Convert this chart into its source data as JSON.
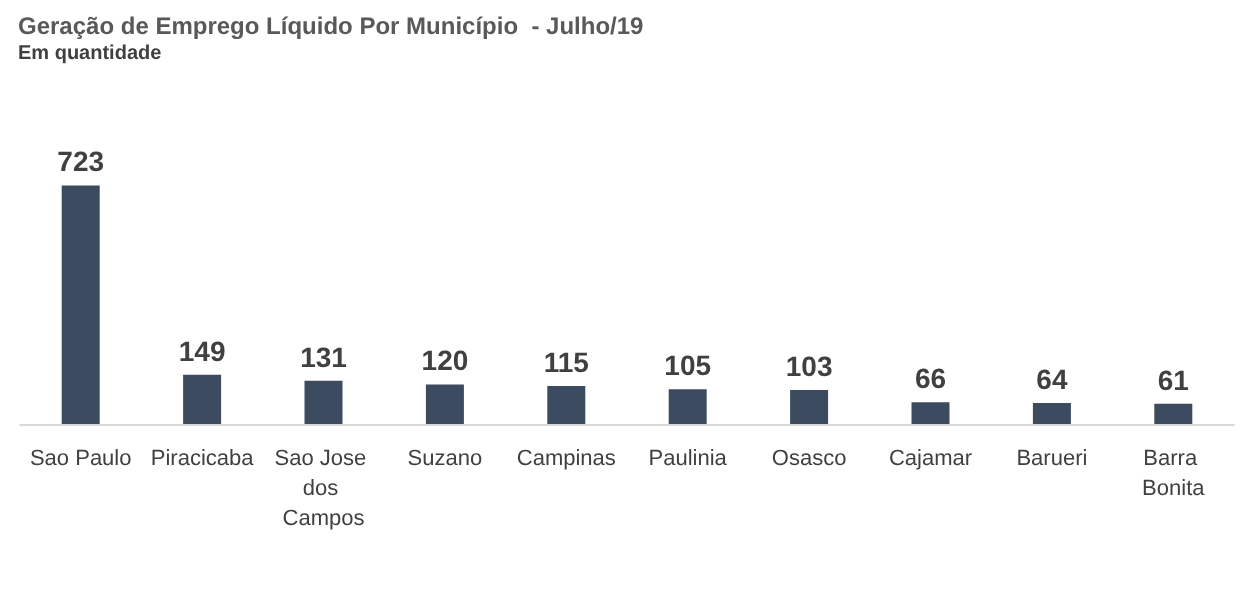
{
  "chart_data": {
    "type": "bar",
    "title": "Geração de Emprego Líquido Por Município  - Julho/19",
    "subtitle": "Em quantidade",
    "categories": [
      "Sao Paulo",
      "Piracicaba",
      "Sao Jose dos Campos",
      "Suzano",
      "Campinas",
      "Paulinia",
      "Osasco",
      "Cajamar",
      "Barueri",
      "Barra Bonita"
    ],
    "values": [
      723,
      149,
      131,
      120,
      115,
      105,
      103,
      66,
      64,
      61
    ],
    "color": "#3d4b60",
    "data_labels": true
  }
}
